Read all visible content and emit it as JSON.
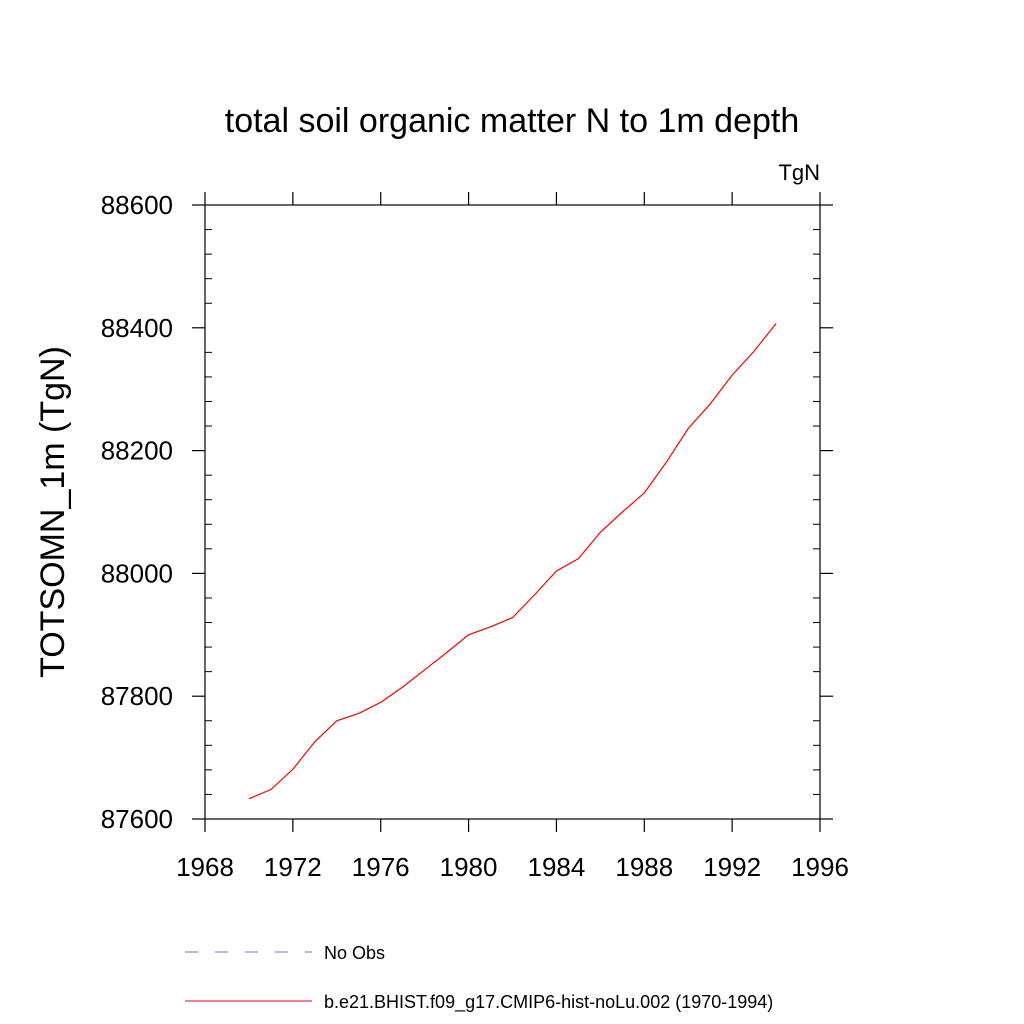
{
  "chart_data": {
    "type": "line",
    "title": "total soil organic matter N to 1m depth",
    "units_label": "TgN",
    "ylabel": "TOTSOMN_1m  (TgN)",
    "xlabel": "",
    "xlim": [
      1968,
      1996
    ],
    "ylim": [
      87600,
      88600
    ],
    "x_ticks": [
      1968,
      1972,
      1976,
      1980,
      1984,
      1988,
      1992,
      1996
    ],
    "y_ticks": [
      87600,
      87800,
      88000,
      88200,
      88400,
      88600
    ],
    "grid": false,
    "legend_position": "bottom",
    "series": [
      {
        "name": "No Obs",
        "color": "#7b68c8",
        "style": "dashed",
        "x": [],
        "y": []
      },
      {
        "name": "b.e21.BHIST.f09_g17.CMIP6-hist-noLu.002 (1970-1994)",
        "color": "#ff0000",
        "style": "solid",
        "x": [
          1970,
          1971,
          1972,
          1973,
          1974,
          1975,
          1976,
          1977,
          1978,
          1979,
          1980,
          1981,
          1982,
          1983,
          1984,
          1985,
          1986,
          1987,
          1988,
          1989,
          1990,
          1991,
          1992,
          1993,
          1994
        ],
        "y": [
          87633,
          87648,
          87681,
          87726,
          87760,
          87772,
          87790,
          87815,
          87843,
          87871,
          87900,
          87913,
          87928,
          87965,
          88004,
          88024,
          88067,
          88100,
          88131,
          88181,
          88236,
          88276,
          88323,
          88362,
          88407
        ]
      }
    ]
  }
}
